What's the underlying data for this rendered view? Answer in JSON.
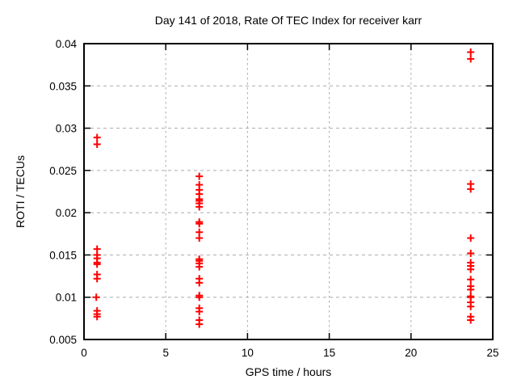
{
  "window": {
    "background": "#ffffff"
  },
  "chart_data": {
    "type": "scatter",
    "title": "Day 141 of 2018, Rate Of TEC Index for receiver karr",
    "xlabel": "GPS time / hours",
    "ylabel": "ROTI / TECUs",
    "xlim": [
      0,
      25
    ],
    "ylim": [
      0.005,
      0.04
    ],
    "xticks": [
      0,
      5,
      10,
      15,
      20,
      25
    ],
    "yticks": [
      0.005,
      0.01,
      0.015,
      0.02,
      0.025,
      0.03,
      0.035,
      0.04
    ],
    "xtick_labels": [
      "0",
      "5",
      "10",
      "15",
      "20",
      "25"
    ],
    "ytick_labels": [
      "0.005",
      "0.01",
      "0.015",
      "0.02",
      "0.025",
      "0.03",
      "0.035",
      "0.04"
    ],
    "grid": true,
    "legend_position": "none",
    "marker": "plus",
    "marker_color": "#ff0000",
    "grid_color": "#ababab",
    "axis_color": "#000000",
    "series": [
      {
        "name": "ROTI",
        "points": [
          [
            0.8,
            0.0289
          ],
          [
            0.8,
            0.0281
          ],
          [
            0.8,
            0.0157
          ],
          [
            0.8,
            0.015
          ],
          [
            0.8,
            0.0146
          ],
          [
            0.8,
            0.0141
          ],
          [
            0.8,
            0.0139
          ],
          [
            0.8,
            0.0127
          ],
          [
            0.8,
            0.0122
          ],
          [
            0.75,
            0.01
          ],
          [
            0.8,
            0.0084
          ],
          [
            0.8,
            0.008
          ],
          [
            0.8,
            0.0077
          ],
          [
            7.05,
            0.0243
          ],
          [
            7.05,
            0.0233
          ],
          [
            7.05,
            0.0227
          ],
          [
            7.05,
            0.0222
          ],
          [
            7.05,
            0.0216
          ],
          [
            7.05,
            0.0214
          ],
          [
            7.05,
            0.0211
          ],
          [
            7.05,
            0.0207
          ],
          [
            7.05,
            0.0189
          ],
          [
            7.05,
            0.0187
          ],
          [
            7.05,
            0.0177
          ],
          [
            7.05,
            0.017
          ],
          [
            7.05,
            0.0145
          ],
          [
            7.05,
            0.0143
          ],
          [
            7.05,
            0.014
          ],
          [
            7.05,
            0.0136
          ],
          [
            7.05,
            0.0122
          ],
          [
            7.05,
            0.0117
          ],
          [
            7.05,
            0.0102
          ],
          [
            7.05,
            0.01
          ],
          [
            7.05,
            0.0087
          ],
          [
            7.05,
            0.0083
          ],
          [
            7.05,
            0.0073
          ],
          [
            7.05,
            0.0068
          ],
          [
            23.65,
            0.039
          ],
          [
            23.65,
            0.0382
          ],
          [
            23.65,
            0.0234
          ],
          [
            23.65,
            0.0228
          ],
          [
            23.65,
            0.017
          ],
          [
            23.65,
            0.0152
          ],
          [
            23.65,
            0.0141
          ],
          [
            23.65,
            0.0137
          ],
          [
            23.65,
            0.0133
          ],
          [
            23.65,
            0.0121
          ],
          [
            23.65,
            0.0113
          ],
          [
            23.65,
            0.0109
          ],
          [
            23.65,
            0.0101
          ],
          [
            23.65,
            0.01
          ],
          [
            23.65,
            0.0094
          ],
          [
            23.65,
            0.0089
          ],
          [
            23.65,
            0.0077
          ],
          [
            23.65,
            0.0073
          ]
        ]
      }
    ]
  }
}
